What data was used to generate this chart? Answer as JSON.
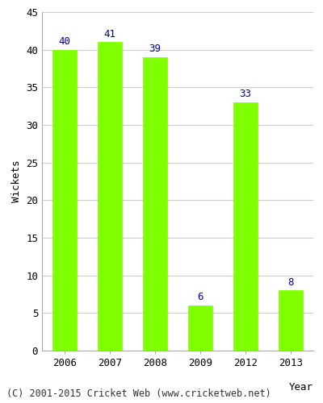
{
  "categories": [
    "2006",
    "2007",
    "2008",
    "2009",
    "2012",
    "2013"
  ],
  "values": [
    40,
    41,
    39,
    6,
    33,
    8
  ],
  "bar_color": "#7FFF00",
  "bar_edge_color": "#7FFF00",
  "label_color": "#00008B",
  "ylabel": "Wickets",
  "xlabel": "Year",
  "ylim": [
    0,
    45
  ],
  "yticks": [
    0,
    5,
    10,
    15,
    20,
    25,
    30,
    35,
    40,
    45
  ],
  "grid_color": "#cccccc",
  "background_color": "#ffffff",
  "footer_text": "(C) 2001-2015 Cricket Web (www.cricketweb.net)",
  "label_fontsize": 9,
  "axis_fontsize": 9,
  "footer_fontsize": 8.5
}
